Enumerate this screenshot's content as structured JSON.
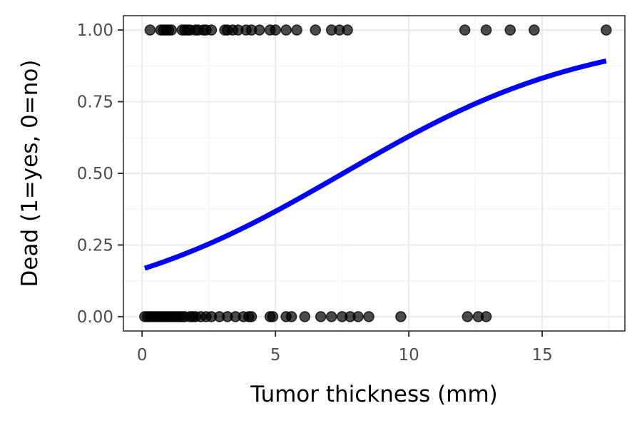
{
  "chart_data": {
    "type": "scatter",
    "xlabel": "Tumor thickness (mm)",
    "ylabel": "Dead (1=yes, 0=no)",
    "xlim": [
      -0.7,
      18.1
    ],
    "ylim": [
      -0.05,
      1.05
    ],
    "x_ticks": [
      0,
      5,
      10,
      15
    ],
    "x_tick_labels": [
      "0",
      "5",
      "10",
      "15"
    ],
    "y_ticks": [
      0,
      0.25,
      0.5,
      0.75,
      1
    ],
    "y_tick_labels": [
      "0.00",
      "0.25",
      "0.50",
      "0.75",
      "1.00"
    ],
    "grid": true,
    "colors": {
      "points": "#000000",
      "fit": "#0000ff",
      "panel_border": "#333333",
      "grid": "#ebebeb"
    },
    "series": [
      {
        "kind": "points",
        "y": 1,
        "x": [
          0.3,
          0.7,
          0.8,
          0.9,
          1.0,
          1.1,
          1.5,
          1.6,
          1.7,
          1.8,
          2.0,
          2.1,
          2.3,
          2.4,
          2.6,
          3.1,
          3.2,
          3.4,
          3.6,
          3.9,
          4.1,
          4.4,
          4.8,
          5.0,
          5.4,
          5.8,
          6.5,
          7.1,
          7.4,
          7.7,
          12.1,
          12.9,
          13.8,
          14.7,
          17.4
        ]
      },
      {
        "kind": "points",
        "y": 0,
        "x": [
          0.1,
          0.2,
          0.3,
          0.4,
          0.5,
          0.6,
          0.7,
          0.8,
          0.9,
          1.0,
          1.1,
          1.2,
          1.3,
          1.4,
          1.5,
          1.6,
          1.8,
          1.9,
          2.0,
          2.2,
          2.4,
          2.6,
          2.9,
          3.2,
          3.5,
          3.8,
          4.0,
          4.1,
          4.8,
          4.9,
          5.4,
          5.6,
          6.1,
          6.7,
          7.1,
          7.5,
          7.8,
          8.1,
          8.5,
          9.7,
          12.2,
          12.6,
          12.9
        ]
      },
      {
        "kind": "logistic-fit",
        "intercept": -1.615,
        "slope": 0.2143,
        "x_range": [
          0.1,
          17.4
        ]
      }
    ]
  }
}
